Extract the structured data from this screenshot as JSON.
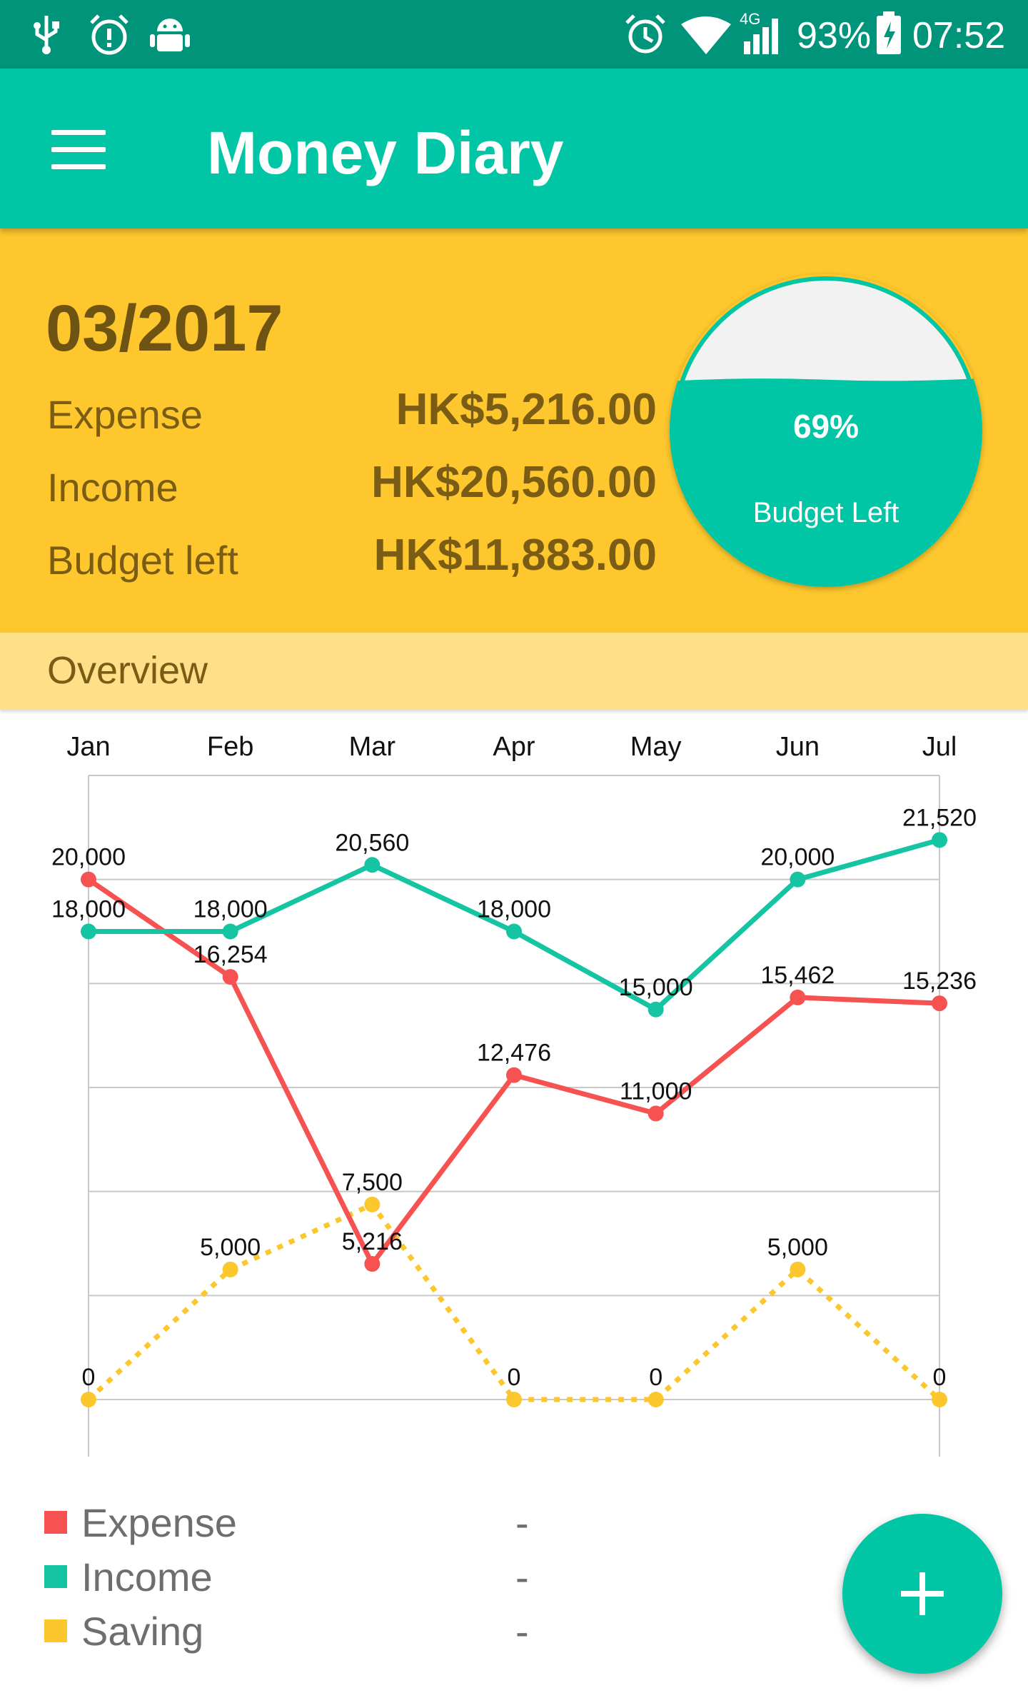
{
  "status_bar": {
    "left_icons": [
      "usb-icon",
      "alarm-warning-icon",
      "android-debug-icon"
    ],
    "right_icons": [
      "alarm-icon",
      "wifi-icon",
      "signal-4g-icon",
      "battery-charging-icon"
    ],
    "network_label": "4G",
    "battery": "93%",
    "time": "07:52"
  },
  "app_bar": {
    "title": "Money Diary",
    "menu_icon": "hamburger-menu-icon"
  },
  "summary": {
    "month": "03/2017",
    "rows": [
      {
        "label": "Expense",
        "value": "HK$5,216.00"
      },
      {
        "label": "Income",
        "value": "HK$20,560.00"
      },
      {
        "label": "Budget left",
        "value": "HK$11,883.00"
      }
    ],
    "gauge": {
      "percent_text": "69%",
      "fill_fraction": 0.69,
      "label": "Budget Left"
    }
  },
  "overview": {
    "title": "Overview"
  },
  "colors": {
    "status_bar": "#00947a",
    "app_bar": "#00c6a6",
    "summary_bg": "#fdc72d",
    "overview_bg": "#fee089",
    "expense": "#f75252",
    "income": "#14c4a2",
    "saving": "#fcc72c"
  },
  "chart_data": {
    "type": "line",
    "categories": [
      "Jan",
      "Feb",
      "Mar",
      "Apr",
      "May",
      "Jun",
      "Jul"
    ],
    "ylim": [
      0,
      24000
    ],
    "grid": true,
    "series": [
      {
        "name": "Expense",
        "color": "#f75252",
        "style": "solid",
        "values": [
          20000,
          16254,
          5216,
          12476,
          11000,
          15462,
          15236
        ],
        "labels": [
          "20,000",
          "16,254",
          "5,216",
          "12,476",
          "11,000",
          "15,462",
          "15,236"
        ]
      },
      {
        "name": "Income",
        "color": "#14c4a2",
        "style": "solid",
        "values": [
          18000,
          18000,
          20560,
          18000,
          15000,
          20000,
          21520
        ],
        "labels": [
          "18,000",
          "18,000",
          "20,560",
          "18,000",
          "15,000",
          "20,000",
          "21,520"
        ]
      },
      {
        "name": "Saving",
        "color": "#fcc72c",
        "style": "dotted",
        "values": [
          0,
          5000,
          7500,
          0,
          0,
          5000,
          0
        ],
        "labels": [
          "0",
          "5,000",
          "7,500",
          "0",
          "0",
          "5,000",
          "0"
        ]
      }
    ]
  },
  "legend": [
    {
      "name": "Expense",
      "value": "-",
      "color": "#f75252"
    },
    {
      "name": "Income",
      "value": "-",
      "color": "#14c4a2"
    },
    {
      "name": "Saving",
      "value": "-",
      "color": "#fcc72c"
    }
  ],
  "fab": {
    "icon": "plus-icon"
  }
}
